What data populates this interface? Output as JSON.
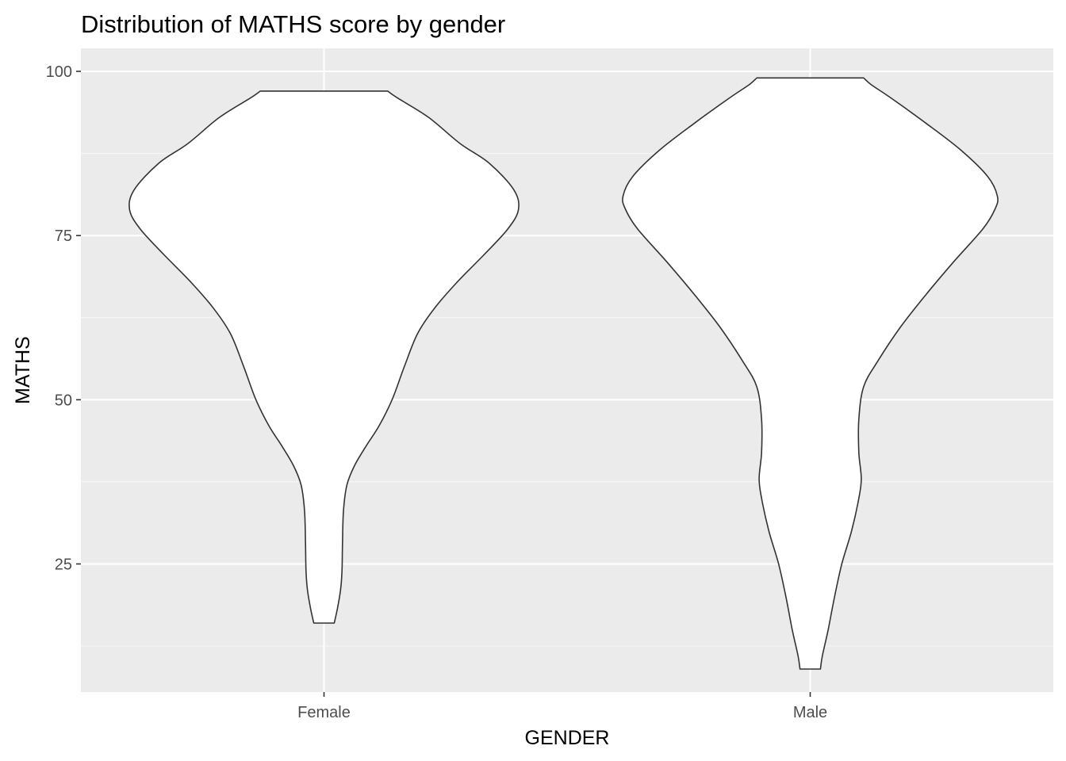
{
  "chart_data": {
    "type": "violin",
    "title": "Distribution of MATHS score by gender",
    "xlabel": "GENDER",
    "ylabel": "MATHS",
    "categories": [
      "Female",
      "Male"
    ],
    "ylim": [
      5.5,
      103.5
    ],
    "yticks": [
      25,
      50,
      75,
      100
    ],
    "grid": true,
    "colors": {
      "panel_background": "#ebebeb",
      "grid_major": "#ffffff",
      "grid_minor": "#f7f7f7",
      "violin_fill": "#ffffff",
      "violin_outline": "#333333",
      "tick_text": "#4d4d4d",
      "tick_mark": "#333333"
    },
    "series": [
      {
        "category": "Female",
        "min": 16,
        "max": 97,
        "density_half_width": [
          [
            16,
            0.021
          ],
          [
            18,
            0.027
          ],
          [
            21,
            0.034
          ],
          [
            24,
            0.037
          ],
          [
            28,
            0.038
          ],
          [
            33,
            0.04
          ],
          [
            37,
            0.047
          ],
          [
            40,
            0.063
          ],
          [
            43,
            0.087
          ],
          [
            46,
            0.113
          ],
          [
            50,
            0.14
          ],
          [
            55,
            0.165
          ],
          [
            60,
            0.192
          ],
          [
            64,
            0.228
          ],
          [
            68,
            0.275
          ],
          [
            72,
            0.328
          ],
          [
            76,
            0.378
          ],
          [
            79,
            0.4
          ],
          [
            82,
            0.39
          ],
          [
            86,
            0.34
          ],
          [
            89,
            0.28
          ],
          [
            93,
            0.215
          ],
          [
            96,
            0.15
          ],
          [
            97,
            0.131
          ]
        ]
      },
      {
        "category": "Male",
        "min": 9,
        "max": 99,
        "density_half_width": [
          [
            9,
            0.021
          ],
          [
            11,
            0.025
          ],
          [
            15,
            0.037
          ],
          [
            20,
            0.05
          ],
          [
            25,
            0.065
          ],
          [
            30,
            0.085
          ],
          [
            35,
            0.1
          ],
          [
            38,
            0.105
          ],
          [
            42,
            0.1
          ],
          [
            47,
            0.1
          ],
          [
            52,
            0.11
          ],
          [
            56,
            0.14
          ],
          [
            61,
            0.185
          ],
          [
            66,
            0.238
          ],
          [
            71,
            0.295
          ],
          [
            76,
            0.355
          ],
          [
            79,
            0.38
          ],
          [
            81,
            0.385
          ],
          [
            84,
            0.365
          ],
          [
            88,
            0.31
          ],
          [
            92,
            0.24
          ],
          [
            96,
            0.165
          ],
          [
            98,
            0.125
          ],
          [
            99,
            0.11
          ]
        ]
      }
    ]
  }
}
